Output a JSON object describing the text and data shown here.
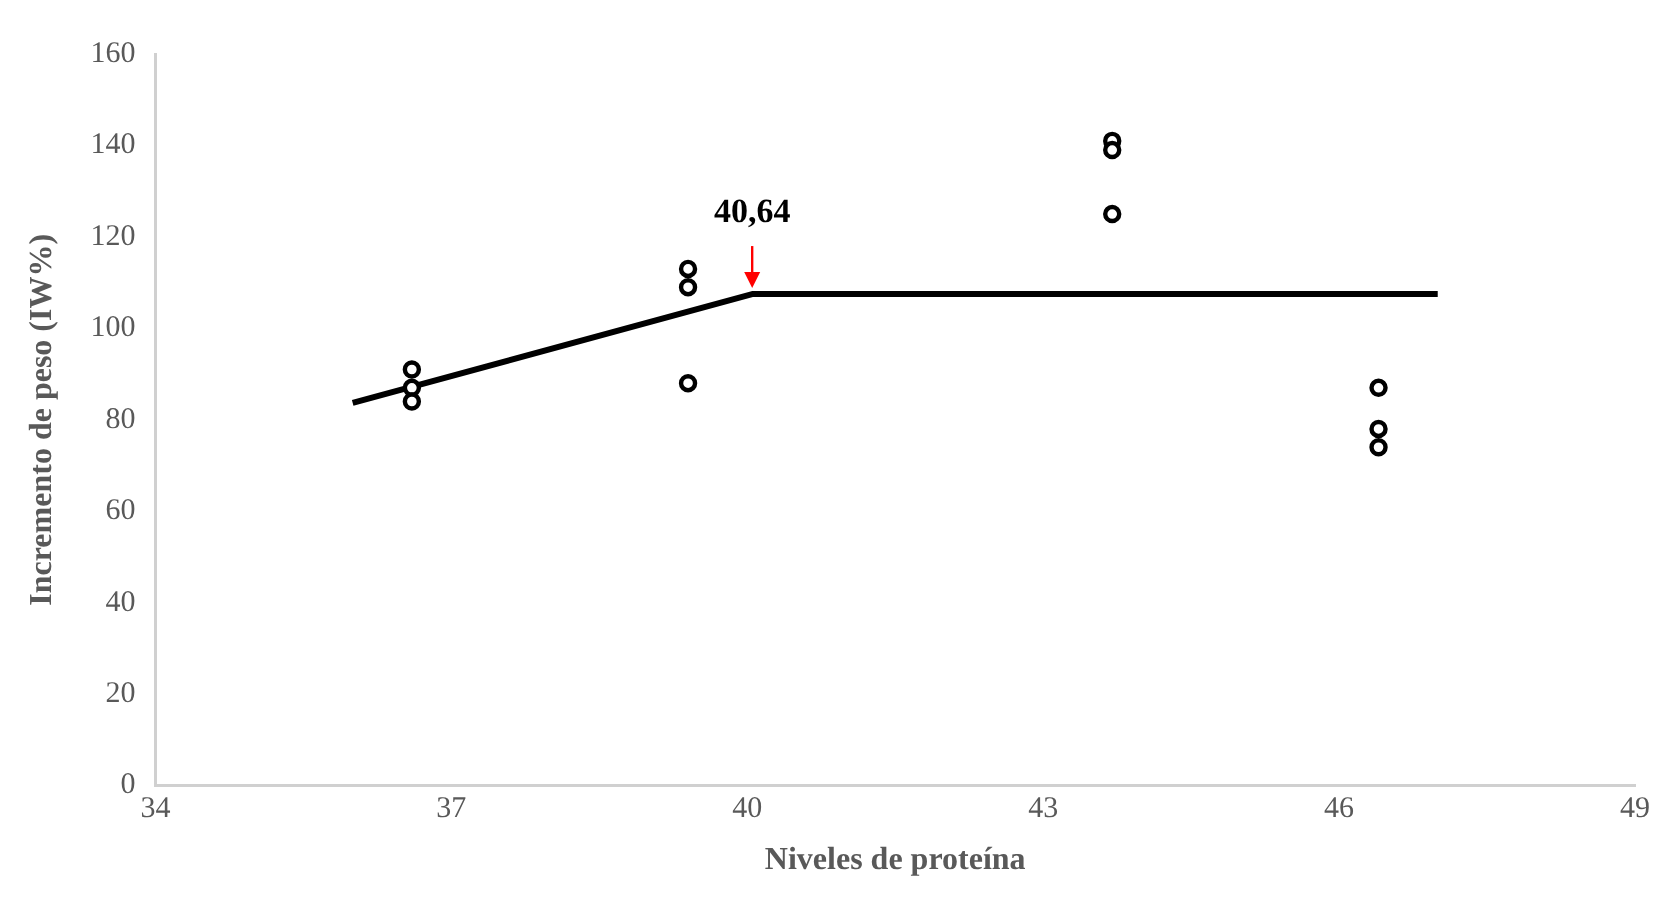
{
  "chart_data": {
    "type": "scatter",
    "xlabel": "Niveles de proteína",
    "ylabel": "Incremento de peso (IW%)",
    "xlim": [
      34,
      49
    ],
    "xticks": [
      34,
      37,
      40,
      43,
      46,
      49
    ],
    "ylim": [
      0,
      160
    ],
    "yticks": [
      0,
      20,
      40,
      60,
      80,
      100,
      120,
      140,
      160
    ],
    "grid": false,
    "legend": false,
    "marker": "circle",
    "series": [
      {
        "color": "#000000",
        "x": [
          36.6,
          36.6,
          36.6,
          39.4,
          39.4,
          39.4,
          43.7,
          43.7,
          43.7,
          46.4,
          46.4,
          46.4
        ],
        "values": [
          91,
          87,
          84,
          113,
          109,
          88,
          141,
          139,
          125,
          87,
          78,
          74
        ]
      },
      {
        "type": "line",
        "color": "#000000",
        "marker": "none",
        "x": [
          36,
          40.05,
          47
        ],
        "values": [
          83.7,
          107.5,
          107.5
        ]
      }
    ],
    "annotations": [
      {
        "text": "40,64",
        "x": 40.05,
        "y": 107.5
      }
    ]
  }
}
